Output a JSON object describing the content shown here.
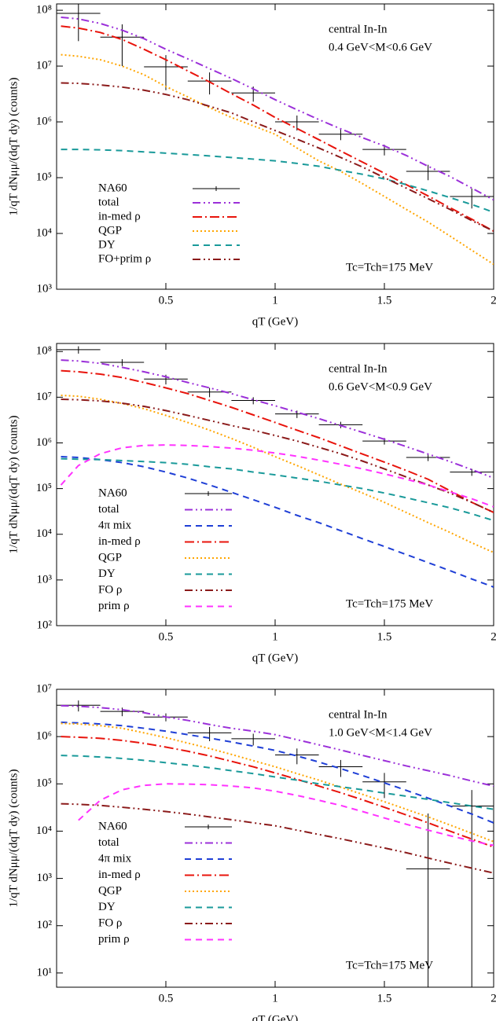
{
  "chart_data": [
    {
      "type": "line",
      "annotations": [
        "central In-In",
        "0.4 GeV<M<0.6 GeV",
        "Tc=Tch=175 MeV"
      ],
      "xlabel": "qT (GeV)",
      "ylabel": "1/qT dNμμ/(dqT dy) (counts)",
      "xlim": [
        0,
        2
      ],
      "ylim": [
        1000,
        130000000
      ],
      "log_y": true,
      "xticks": [
        0.5,
        1,
        1.5,
        2
      ],
      "yticks": [
        {
          "value": 1000,
          "label": "10³"
        },
        {
          "value": 10000,
          "label": "10⁴"
        },
        {
          "value": 100000,
          "label": "10⁵"
        },
        {
          "value": 1000000,
          "label": "10⁶"
        },
        {
          "value": 10000000,
          "label": "10⁷"
        },
        {
          "value": 100000000,
          "label": "10⁸"
        }
      ],
      "legend": "bottom-left",
      "x": [
        0.02,
        0.1,
        0.2,
        0.3,
        0.4,
        0.5,
        0.6,
        0.7,
        0.8,
        0.9,
        1.0,
        1.1,
        1.2,
        1.3,
        1.4,
        1.5,
        1.6,
        1.7,
        1.8,
        1.9,
        2.0
      ],
      "series": [
        {
          "name": "NA60",
          "color": "#000000",
          "style": "errorbar",
          "x": [
            0.1,
            0.3,
            0.5,
            0.7,
            0.9,
            1.1,
            1.3,
            1.5,
            1.7,
            1.9
          ],
          "xerr": [
            0.1,
            0.1,
            0.1,
            0.1,
            0.1,
            0.1,
            0.1,
            0.1,
            0.1,
            0.1
          ],
          "values": [
            88000000,
            33000000,
            9700000,
            5400000,
            3300000,
            1000000,
            600000,
            320000,
            130000,
            46000
          ],
          "errors": [
            60000000,
            23000000,
            6000000,
            2300000,
            1000000,
            300000,
            130000,
            70000,
            40000,
            18000
          ]
        },
        {
          "name": "total",
          "color": "#9b30d9",
          "style": "dash-dot-dot",
          "values": [
            75000000,
            70000000,
            58000000,
            44000000,
            31000000,
            20000000,
            13500000,
            9000000,
            6000000,
            3900000,
            2500000,
            1650000,
            1100000,
            750000,
            520000,
            370000,
            250000,
            160000,
            105000,
            65000,
            40000
          ]
        },
        {
          "name": "in-med ρ",
          "color": "#e8140c",
          "style": "dash-dot",
          "values": [
            52000000,
            48000000,
            40000000,
            30000000,
            20000000,
            13000000,
            8200000,
            5200000,
            3200000,
            2000000,
            1200000,
            760000,
            480000,
            300000,
            190000,
            120000,
            75000,
            47000,
            29000,
            18000,
            11000
          ]
        },
        {
          "name": "QGP",
          "color": "#ffa500",
          "style": "dotted",
          "values": [
            16000000,
            15000000,
            13000000,
            10000000,
            7000000,
            4300000,
            2800000,
            1800000,
            1200000,
            850000,
            600000,
            340000,
            200000,
            130000,
            78000,
            46000,
            27000,
            16000,
            9000,
            5000,
            2800
          ]
        },
        {
          "name": "DY",
          "color": "#1a9a9a",
          "style": "dashed",
          "values": [
            320000,
            320000,
            315000,
            305000,
            290000,
            275000,
            260000,
            245000,
            230000,
            215000,
            200000,
            180000,
            160000,
            135000,
            115000,
            95000,
            75000,
            58000,
            44000,
            33000,
            24000
          ]
        },
        {
          "name": "FO+prim ρ",
          "color": "#8b1a1a",
          "style": "dash-dot-dot",
          "values": [
            5000000,
            4900000,
            4600000,
            4200000,
            3700000,
            3100000,
            2500000,
            1900000,
            1450000,
            1000000,
            700000,
            490000,
            340000,
            230000,
            155000,
            100000,
            65000,
            42000,
            27000,
            17000,
            11000
          ]
        }
      ]
    },
    {
      "type": "line",
      "annotations": [
        "central In-In",
        "0.6 GeV<M<0.9 GeV",
        "Tc=Tch=175 MeV"
      ],
      "xlabel": "qT (GeV)",
      "ylabel": "1/qT dNμμ/(dqT dy) (counts)",
      "xlim": [
        0,
        2
      ],
      "ylim": [
        100,
        150000000
      ],
      "log_y": true,
      "xticks": [
        0.5,
        1,
        1.5,
        2
      ],
      "yticks": [
        {
          "value": 100,
          "label": "10²"
        },
        {
          "value": 1000,
          "label": "10³"
        },
        {
          "value": 10000,
          "label": "10⁴"
        },
        {
          "value": 100000,
          "label": "10⁵"
        },
        {
          "value": 1000000,
          "label": "10⁶"
        },
        {
          "value": 10000000,
          "label": "10⁷"
        },
        {
          "value": 100000000,
          "label": "10⁸"
        }
      ],
      "legend": "bottom-left",
      "x": [
        0.02,
        0.1,
        0.2,
        0.3,
        0.4,
        0.5,
        0.6,
        0.7,
        0.8,
        0.9,
        1.0,
        1.1,
        1.2,
        1.3,
        1.4,
        1.5,
        1.6,
        1.7,
        1.8,
        1.9,
        2.0
      ],
      "series": [
        {
          "name": "NA60",
          "color": "#000000",
          "style": "errorbar",
          "x": [
            0.1,
            0.3,
            0.5,
            0.7,
            0.9,
            1.1,
            1.3,
            1.5,
            1.7,
            1.9
          ],
          "xerr": [
            0.1,
            0.1,
            0.1,
            0.1,
            0.1,
            0.1,
            0.1,
            0.1,
            0.1,
            0.1
          ],
          "values": [
            110000000,
            58000000,
            25000000,
            13000000,
            8500000,
            4300000,
            2500000,
            1100000,
            480000,
            230000
          ],
          "errors": [
            20000000,
            10000000,
            6000000,
            3000000,
            1500000,
            800000,
            400000,
            180000,
            80000,
            40000
          ]
        },
        {
          "name": "total",
          "color": "#9b30d9",
          "style": "dash-dot-dot",
          "values": [
            65000000,
            62000000,
            55000000,
            45000000,
            36000000,
            28000000,
            21000000,
            16000000,
            12000000,
            8800000,
            6500000,
            4700000,
            3400000,
            2400000,
            1700000,
            1200000,
            830000,
            570000,
            390000,
            260000,
            170000
          ]
        },
        {
          "name": "4π mix",
          "color": "#1f3fd6",
          "style": "dashed",
          "values": [
            500000,
            480000,
            430000,
            370000,
            300000,
            230000,
            170000,
            120000,
            83000,
            57000,
            39000,
            26000,
            18000,
            12000,
            8000,
            5400,
            3600,
            2400,
            1600,
            1050,
            700
          ]
        },
        {
          "name": "in-med ρ",
          "color": "#e8140c",
          "style": "dash-dot",
          "values": [
            38000000,
            36000000,
            32000000,
            27000000,
            21000000,
            16000000,
            12000000,
            8500000,
            6000000,
            4100000,
            2800000,
            1900000,
            1300000,
            860000,
            570000,
            380000,
            250000,
            160000,
            90000,
            50000,
            30000
          ]
        },
        {
          "name": "QGP",
          "color": "#ffa500",
          "style": "dotted",
          "values": [
            11000000,
            10500000,
            9000000,
            7300000,
            5600000,
            4000000,
            2800000,
            1900000,
            1250000,
            800000,
            500000,
            320000,
            200000,
            125000,
            80000,
            50000,
            30000,
            18000,
            11000,
            6500,
            4000
          ]
        },
        {
          "name": "DY",
          "color": "#1a9a9a",
          "style": "dashed",
          "values": [
            450000,
            440000,
            430000,
            410000,
            390000,
            370000,
            340000,
            300000,
            270000,
            230000,
            200000,
            170000,
            145000,
            120000,
            100000,
            80000,
            63000,
            49000,
            38000,
            28000,
            20000
          ]
        },
        {
          "name": "FO ρ",
          "color": "#8b1a1a",
          "style": "dash-dot-dot",
          "values": [
            9000000,
            8800000,
            8300000,
            7400000,
            6300000,
            5100000,
            4000000,
            3100000,
            2400000,
            1900000,
            1450000,
            1100000,
            800000,
            580000,
            400000,
            270000,
            180000,
            120000,
            80000,
            50000,
            30000
          ]
        },
        {
          "name": "prim ρ",
          "color": "#ff33ff",
          "style": "dashed",
          "values": [
            120000,
            320000,
            580000,
            780000,
            880000,
            900000,
            880000,
            830000,
            770000,
            690000,
            600000,
            510000,
            420000,
            340000,
            270000,
            210000,
            160000,
            120000,
            85000,
            60000,
            40000
          ]
        }
      ]
    },
    {
      "type": "line",
      "annotations": [
        "central In-In",
        "1.0 GeV<M<1.4 GeV",
        "Tc=Tch=175 MeV"
      ],
      "xlabel": "qT (GeV)",
      "ylabel": "1/qT dNμμ/(dqT dy) (counts)",
      "xlim": [
        0,
        2
      ],
      "ylim": [
        5,
        10000000
      ],
      "log_y": true,
      "xticks": [
        0.5,
        1,
        1.5,
        2
      ],
      "yticks": [
        {
          "value": 10,
          "label": "10¹"
        },
        {
          "value": 100,
          "label": "10²"
        },
        {
          "value": 1000,
          "label": "10³"
        },
        {
          "value": 10000,
          "label": "10⁴"
        },
        {
          "value": 100000,
          "label": "10⁵"
        },
        {
          "value": 1000000,
          "label": "10⁶"
        },
        {
          "value": 10000000,
          "label": "10⁷"
        }
      ],
      "legend": "bottom-left",
      "x": [
        0.02,
        0.1,
        0.2,
        0.3,
        0.4,
        0.5,
        0.6,
        0.7,
        0.8,
        0.9,
        1.0,
        1.1,
        1.2,
        1.3,
        1.4,
        1.5,
        1.6,
        1.7,
        1.8,
        1.9,
        2.0
      ],
      "series": [
        {
          "name": "NA60",
          "color": "#000000",
          "style": "errorbar",
          "x": [
            0.1,
            0.3,
            0.5,
            0.7,
            0.9,
            1.1,
            1.3,
            1.5,
            1.7,
            1.9
          ],
          "xerr": [
            0.1,
            0.1,
            0.1,
            0.1,
            0.1,
            0.1,
            0.1,
            0.1,
            0.1,
            0.1
          ],
          "values": [
            4600000,
            3400000,
            2600000,
            1200000,
            900000,
            410000,
            230000,
            110000,
            1600,
            34000
          ],
          "errors": [
            1200000,
            700000,
            500000,
            400000,
            250000,
            150000,
            90000,
            60000,
            22000,
            40000
          ]
        },
        {
          "name": "total",
          "color": "#9b30d9",
          "style": "dash-dot-dot",
          "values": [
            4500000,
            4400000,
            4100000,
            3700000,
            3200000,
            2600000,
            2200000,
            1800000,
            1500000,
            1300000,
            1100000,
            860000,
            670000,
            520000,
            400000,
            310000,
            240000,
            190000,
            150000,
            115000,
            90000
          ]
        },
        {
          "name": "4π mix",
          "color": "#1f3fd6",
          "style": "dashed",
          "values": [
            2000000,
            1950000,
            1850000,
            1700000,
            1500000,
            1300000,
            1100000,
            930000,
            770000,
            630000,
            510000,
            390000,
            290000,
            210000,
            150000,
            105000,
            73000,
            50000,
            34000,
            23000,
            15000
          ]
        },
        {
          "name": "in-med ρ",
          "color": "#e8140c",
          "style": "dash-dot",
          "values": [
            1000000,
            970000,
            920000,
            830000,
            720000,
            600000,
            490000,
            390000,
            300000,
            230000,
            170000,
            125000,
            90000,
            65000,
            46000,
            32000,
            22000,
            15000,
            10000,
            6800,
            4600
          ]
        },
        {
          "name": "QGP",
          "color": "#ffa500",
          "style": "dotted",
          "values": [
            1900000,
            1850000,
            1700000,
            1500000,
            1200000,
            950000,
            730000,
            560000,
            420000,
            310000,
            230000,
            165000,
            120000,
            85000,
            60000,
            42000,
            29000,
            20000,
            13500,
            9000,
            6000
          ]
        },
        {
          "name": "DY",
          "color": "#1a9a9a",
          "style": "dashed",
          "values": [
            400000,
            390000,
            370000,
            345000,
            315000,
            280000,
            250000,
            220000,
            190000,
            165000,
            140000,
            120000,
            100000,
            87000,
            75000,
            64000,
            55000,
            47000,
            40000,
            34000,
            29000
          ]
        },
        {
          "name": "FO ρ",
          "color": "#8b1a1a",
          "style": "dash-dot-dot",
          "values": [
            38000,
            37000,
            35000,
            32000,
            29000,
            26000,
            23000,
            20000,
            17500,
            15000,
            13000,
            10500,
            8500,
            6900,
            5500,
            4400,
            3500,
            2700,
            2100,
            1650,
            1300
          ]
        },
        {
          "name": "prim ρ",
          "color": "#ff33ff",
          "style": "dashed",
          "values": [
            null,
            17000,
            45000,
            75000,
            93000,
            100000,
            99000,
            96000,
            90000,
            82000,
            70000,
            57000,
            45000,
            35000,
            26000,
            19000,
            14000,
            10500,
            8000,
            6200,
            5000
          ]
        }
      ]
    }
  ]
}
